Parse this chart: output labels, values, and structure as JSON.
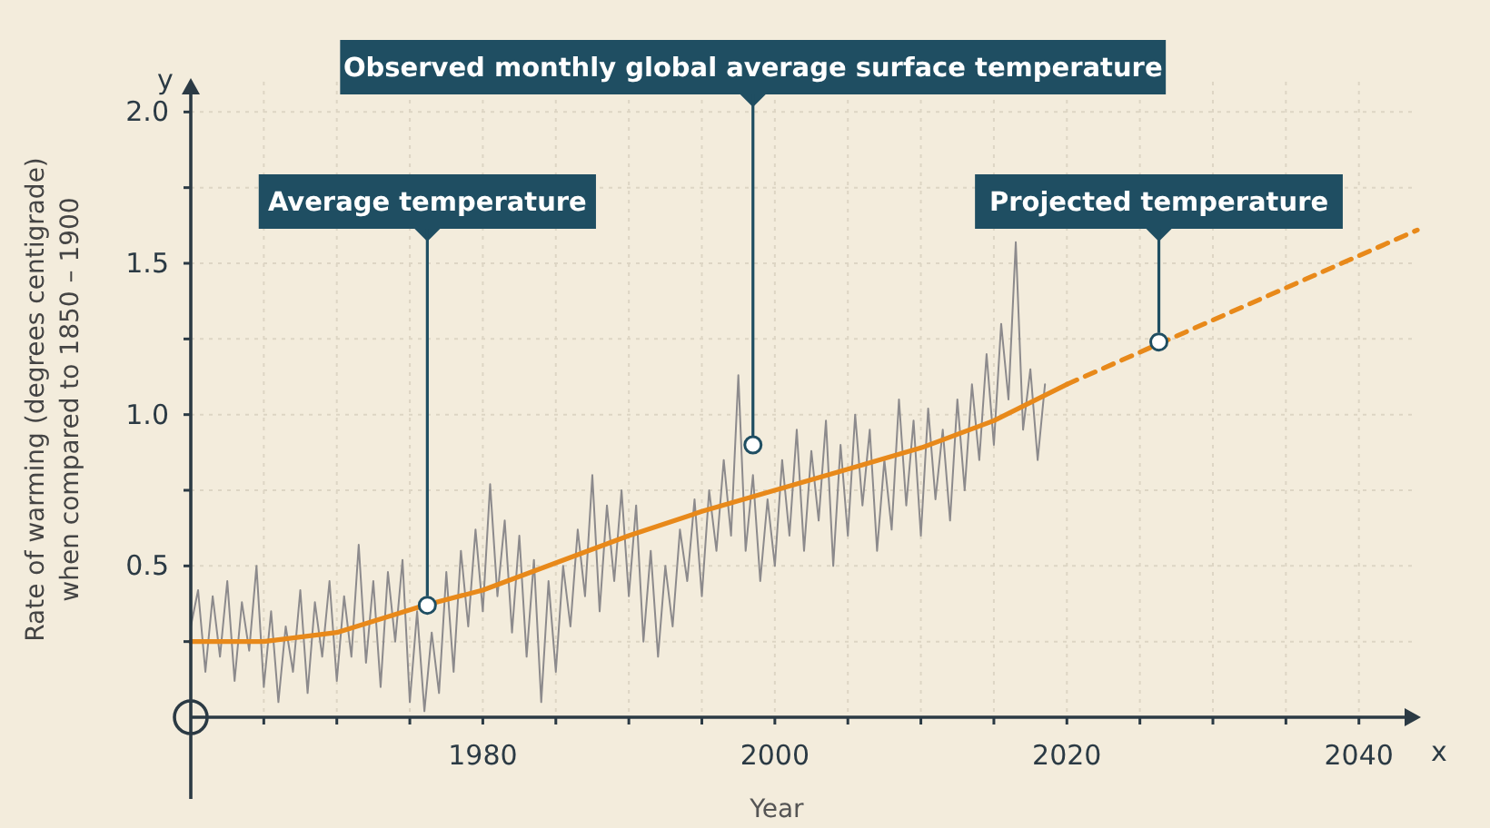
{
  "chart_data": {
    "type": "line",
    "xlabel": "Year",
    "ylabel": "Rate of warming (degrees centigrade)\nwhen compared to 1850 – 1900",
    "xlim": [
      1960,
      2044
    ],
    "ylim": [
      0,
      2.1
    ],
    "xticks": [
      {
        "value": 1965,
        "label": null
      },
      {
        "value": 1970,
        "label": null
      },
      {
        "value": 1975,
        "label": null
      },
      1980,
      {
        "value": 1985,
        "label": null
      },
      {
        "value": 1990,
        "label": null
      },
      {
        "value": 1995,
        "label": null
      },
      2000,
      {
        "value": 2005,
        "label": null
      },
      {
        "value": 2010,
        "label": null
      },
      {
        "value": 2015,
        "label": null
      },
      2020,
      {
        "value": 2025,
        "label": null
      },
      {
        "value": 2030,
        "label": null
      },
      {
        "value": 2035,
        "label": null
      },
      2040
    ],
    "yticks": [
      {
        "value": 0.25,
        "label": null
      },
      {
        "value": 0.5,
        "label": "0.5"
      },
      {
        "value": 0.75,
        "label": null
      },
      {
        "value": 1,
        "label": "1.0"
      },
      {
        "value": 1.25,
        "label": null
      },
      {
        "value": 1.5,
        "label": "1.5"
      },
      {
        "value": 1.75,
        "label": null
      },
      {
        "value": 2,
        "label": "2.0"
      }
    ],
    "grid": true,
    "marker": "none",
    "series": [
      {
        "color": "#8c8a8c",
        "line_style": "solid",
        "x": [
          1960,
          1960.5,
          1961,
          1961.5,
          1962,
          1962.5,
          1963,
          1963.5,
          1964,
          1964.5,
          1965,
          1965.5,
          1966,
          1966.5,
          1967,
          1967.5,
          1968,
          1968.5,
          1969,
          1969.5,
          1970,
          1970.5,
          1971,
          1971.5,
          1972,
          1972.5,
          1973,
          1973.5,
          1974,
          1974.5,
          1975,
          1975.5,
          1976,
          1976.5,
          1977,
          1977.5,
          1978,
          1978.5,
          1979,
          1979.5,
          1980,
          1980.5,
          1981,
          1981.5,
          1982,
          1982.5,
          1983,
          1983.5,
          1984,
          1984.5,
          1985,
          1985.5,
          1986,
          1986.5,
          1987,
          1987.5,
          1988,
          1988.5,
          1989,
          1989.5,
          1990,
          1990.5,
          1991,
          1991.5,
          1992,
          1992.5,
          1993,
          1993.5,
          1994,
          1994.5,
          1995,
          1995.5,
          1996,
          1996.5,
          1997,
          1997.5,
          1998,
          1998.5,
          1999,
          1999.5,
          2000,
          2000.5,
          2001,
          2001.5,
          2002,
          2002.5,
          2003,
          2003.5,
          2004,
          2004.5,
          2005,
          2005.5,
          2006,
          2006.5,
          2007,
          2007.5,
          2008,
          2008.5,
          2009,
          2009.5,
          2010,
          2010.5,
          2011,
          2011.5,
          2012,
          2012.5,
          2013,
          2013.5,
          2014,
          2014.5,
          2015,
          2015.5,
          2016,
          2016.5,
          2017,
          2017.5,
          2018,
          2018.5
        ],
        "values": [
          0.3,
          0.42,
          0.15,
          0.4,
          0.2,
          0.45,
          0.12,
          0.38,
          0.22,
          0.5,
          0.1,
          0.35,
          0.05,
          0.3,
          0.15,
          0.42,
          0.08,
          0.38,
          0.2,
          0.45,
          0.12,
          0.4,
          0.2,
          0.57,
          0.18,
          0.45,
          0.1,
          0.48,
          0.25,
          0.52,
          0.05,
          0.35,
          0.02,
          0.28,
          0.08,
          0.48,
          0.15,
          0.55,
          0.3,
          0.62,
          0.35,
          0.77,
          0.4,
          0.65,
          0.28,
          0.6,
          0.2,
          0.52,
          0.05,
          0.45,
          0.15,
          0.5,
          0.3,
          0.62,
          0.4,
          0.8,
          0.35,
          0.7,
          0.45,
          0.75,
          0.4,
          0.7,
          0.25,
          0.55,
          0.2,
          0.5,
          0.3,
          0.62,
          0.45,
          0.72,
          0.4,
          0.75,
          0.55,
          0.85,
          0.6,
          1.13,
          0.55,
          0.8,
          0.45,
          0.72,
          0.5,
          0.85,
          0.6,
          0.95,
          0.55,
          0.88,
          0.65,
          0.98,
          0.5,
          0.9,
          0.6,
          1.0,
          0.7,
          0.95,
          0.55,
          0.85,
          0.62,
          1.05,
          0.7,
          0.98,
          0.6,
          1.02,
          0.72,
          0.95,
          0.65,
          1.05,
          0.75,
          1.1,
          0.85,
          1.2,
          0.9,
          1.3,
          1.05,
          1.57,
          0.95,
          1.15,
          0.85,
          1.1
        ]
      },
      {
        "color": "#e8891a",
        "line_style": "solid",
        "x": [
          1960,
          1965,
          1970,
          1976,
          1980,
          1985,
          1990,
          1995,
          2000,
          2005,
          2010,
          2015,
          2020
        ],
        "values": [
          0.25,
          0.25,
          0.28,
          0.37,
          0.42,
          0.51,
          0.6,
          0.68,
          0.75,
          0.82,
          0.89,
          0.98,
          1.1
        ]
      },
      {
        "color": "#e8891a",
        "line_style": "dashed",
        "x": [
          2020,
          2044
        ],
        "values": [
          1.1,
          1.61
        ]
      }
    ],
    "annotations": [
      {
        "text": "Average temperature",
        "x": 1976.2,
        "y": 0.37
      },
      {
        "text": "Observed monthly global average surface temperature",
        "x": 1998.5,
        "y": 0.9
      },
      {
        "text": "Projected temperature",
        "x": 2026.3,
        "y": 1.24
      },
      "x",
      "y"
    ]
  }
}
